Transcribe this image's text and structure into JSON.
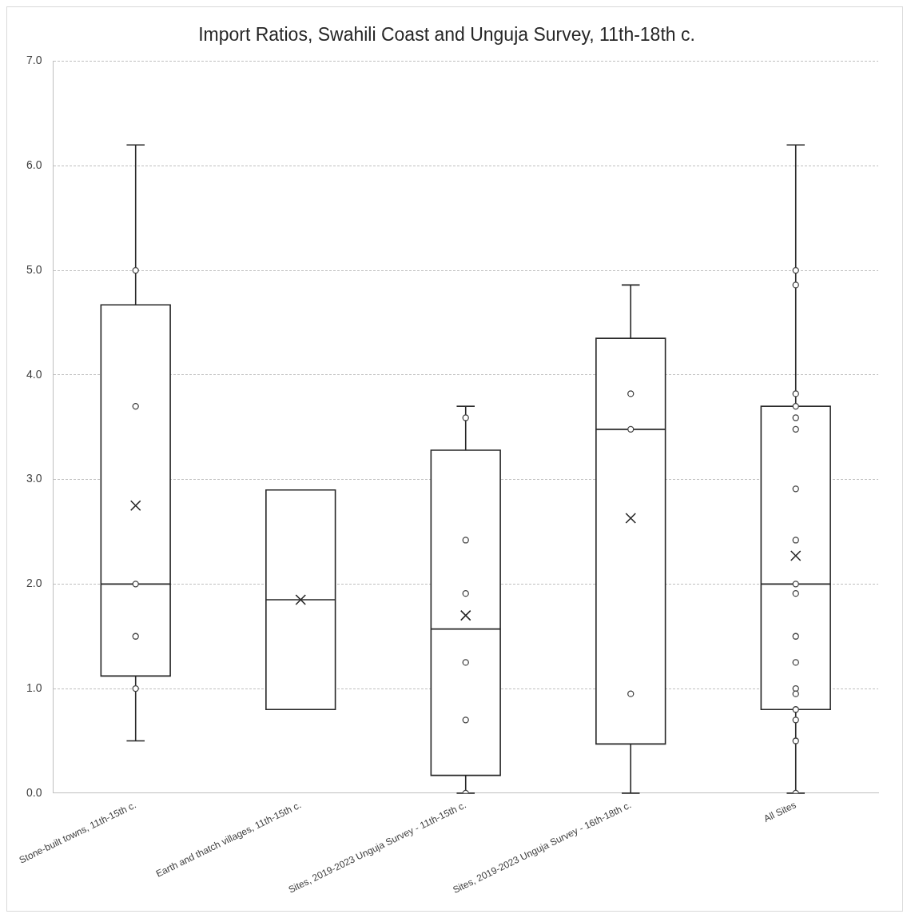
{
  "chart_data": {
    "type": "box",
    "title": "Import Ratios, Swahili Coast and Unguja Survey, 11th-18th c.",
    "categories": [
      "Stone-built towns, 11th-15th c.",
      "Earth and thatch villages, 11th-15th c.",
      "Sites, 2019-2023 Unguja Survey - 11th-15th c.",
      "Sites, 2019-2023 Unguja Survey - 16th-18th c.",
      "All Sites"
    ],
    "boxes": [
      {
        "low": 0.5,
        "q1": 1.12,
        "median": 2.0,
        "q3": 4.67,
        "high": 6.2,
        "mean": 2.75
      },
      {
        "low": 0.8,
        "q1": 0.8,
        "median": 1.85,
        "q3": 2.9,
        "high": 2.9,
        "mean": 1.85
      },
      {
        "low": 0,
        "q1": 0.17,
        "median": 1.57,
        "q3": 3.28,
        "high": 3.7,
        "mean": 1.7
      },
      {
        "low": 0,
        "q1": 0.47,
        "median": 3.48,
        "q3": 4.35,
        "high": 4.86,
        "mean": 2.63
      },
      {
        "low": 0,
        "q1": 0.8,
        "median": 2.0,
        "q3": 3.7,
        "high": 6.2,
        "mean": 2.27
      }
    ],
    "series": [
      {
        "type": "scatter",
        "color": "#404040",
        "x": [
          "Stone-built towns, 11th-15th c.",
          "Stone-built towns, 11th-15th c.",
          "Stone-built towns, 11th-15th c.",
          "Stone-built towns, 11th-15th c.",
          "Stone-built towns, 11th-15th c.",
          "Sites, 2019-2023 Unguja Survey - 11th-15th c.",
          "Sites, 2019-2023 Unguja Survey - 11th-15th c.",
          "Sites, 2019-2023 Unguja Survey - 11th-15th c.",
          "Sites, 2019-2023 Unguja Survey - 11th-15th c.",
          "Sites, 2019-2023 Unguja Survey - 11th-15th c.",
          "Sites, 2019-2023 Unguja Survey - 11th-15th c.",
          "Sites, 2019-2023 Unguja Survey - 16th-18th c.",
          "Sites, 2019-2023 Unguja Survey - 16th-18th c.",
          "Sites, 2019-2023 Unguja Survey - 16th-18th c.",
          "All Sites",
          "All Sites",
          "All Sites",
          "All Sites",
          "All Sites",
          "All Sites",
          "All Sites",
          "All Sites",
          "All Sites",
          "All Sites",
          "All Sites",
          "All Sites",
          "All Sites",
          "All Sites",
          "All Sites",
          "All Sites",
          "All Sites",
          "All Sites"
        ],
        "values": [
          5.0,
          3.7,
          2.0,
          1.5,
          1.0,
          3.59,
          2.42,
          1.91,
          1.25,
          0.7,
          0,
          3.82,
          3.48,
          0.95,
          5.0,
          4.86,
          3.82,
          3.7,
          3.59,
          3.48,
          2.91,
          2.42,
          2.0,
          1.91,
          1.5,
          1.25,
          1.0,
          0.95,
          0.8,
          0.7,
          0.5,
          0
        ]
      }
    ],
    "color": "#262626",
    "ylim": [
      0,
      7
    ],
    "yticks": [
      {
        "value": 0,
        "label": "0.0"
      },
      {
        "value": 1,
        "label": "1.0"
      },
      {
        "value": 2,
        "label": "2.0"
      },
      {
        "value": 3,
        "label": "3.0"
      },
      {
        "value": 4,
        "label": "4.0"
      },
      {
        "value": 5,
        "label": "5.0"
      },
      {
        "value": 6,
        "label": "6.0"
      },
      {
        "value": 7,
        "label": "7.0"
      }
    ],
    "grid": "y",
    "legend": false,
    "marker": "circle"
  }
}
